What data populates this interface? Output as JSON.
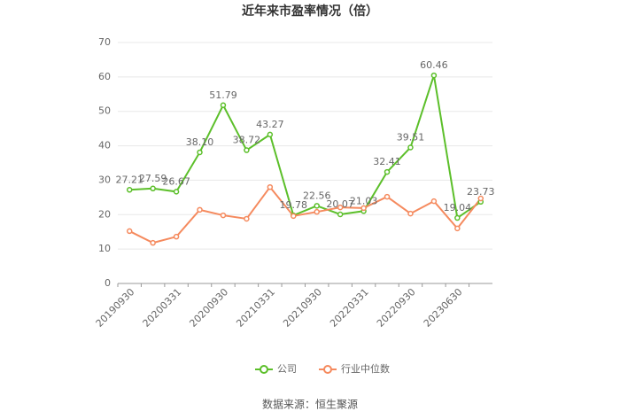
{
  "chart_data": {
    "type": "line",
    "title": "近年来市盈率情况（倍）",
    "categories": [
      "20190930",
      null,
      "20200331",
      null,
      "20200930",
      null,
      "20210331",
      null,
      "20210930",
      null,
      "20220331",
      null,
      "20220930",
      null,
      "20230630",
      null
    ],
    "series": [
      {
        "name": "公司",
        "color": "#5cbf2a",
        "values": [
          27.21,
          27.59,
          26.67,
          38.1,
          51.79,
          38.72,
          43.27,
          19.78,
          22.56,
          20.07,
          21.03,
          32.41,
          39.51,
          60.46,
          19.04,
          23.73
        ],
        "value_labels": [
          "27.21",
          "27.59",
          "26.67",
          "38.10",
          "51.79",
          "38.72",
          "43.27",
          "19.78",
          "22.56",
          "20.07",
          "21.03",
          "32.41",
          "39.51",
          "60.46",
          "19.04",
          "23.73"
        ]
      },
      {
        "name": "行业中位数",
        "color": "#f58a5e",
        "values": [
          15.2,
          11.8,
          13.6,
          21.4,
          19.8,
          18.8,
          28.0,
          19.6,
          20.8,
          22.1,
          21.9,
          25.2,
          20.3,
          23.9,
          16.0,
          24.7
        ]
      }
    ],
    "ylim": [
      0,
      70
    ],
    "yticks": [
      0,
      10,
      20,
      30,
      40,
      50,
      60,
      70
    ],
    "grid": true,
    "source": "数据来源：恒生聚源"
  }
}
